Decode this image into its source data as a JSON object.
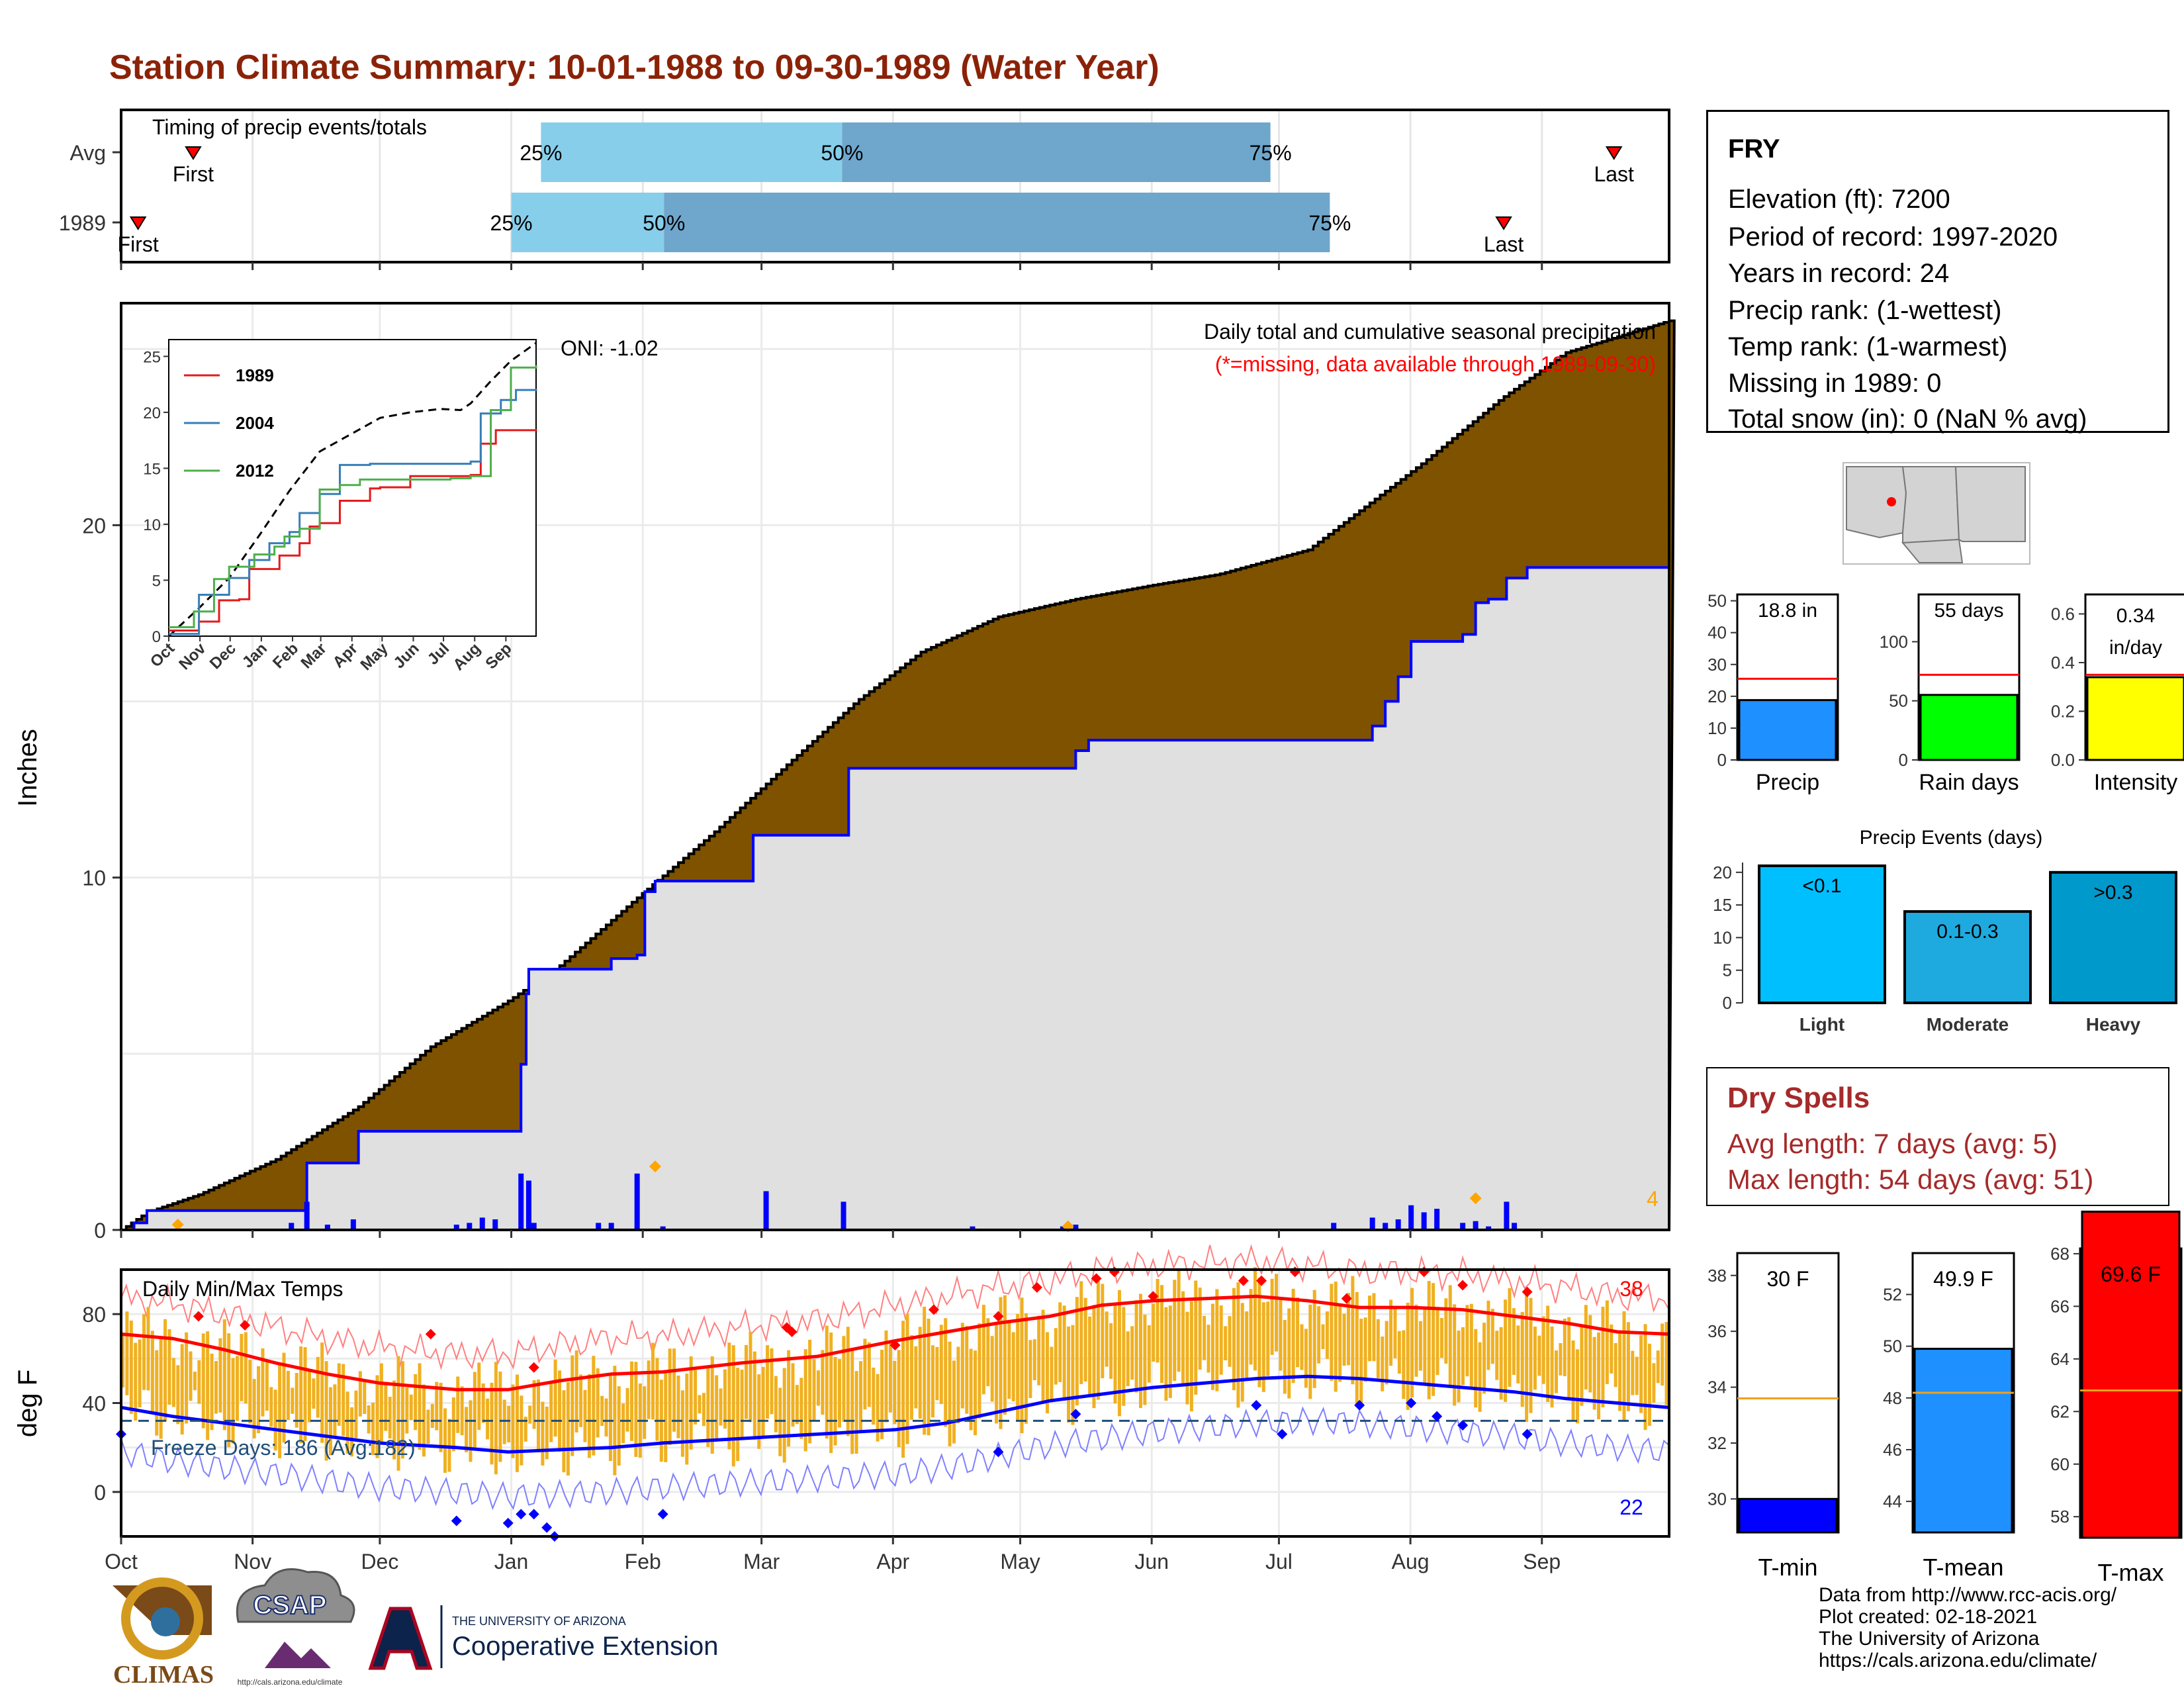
{
  "title": "Station Climate Summary: 10-01-1988 to 09-30-1989 (Water Year)",
  "colors": {
    "title": "#8b2207",
    "cum_precip_fill": "#7f5200",
    "avg_precip_fill": "#e0e0e0",
    "avg_precip_line": "#0000ff",
    "daily_bar": "#0000ff",
    "tmax_line": "#ff0000",
    "tmin_line": "#0000ff",
    "temp_bars": "#f0b020",
    "timing_light": "#87ceeb",
    "timing_dark": "#6fa6cc",
    "dry_spell_text": "#a52a2a"
  },
  "timing": {
    "label": "Timing of precip events/totals",
    "rows": [
      {
        "name": "Avg",
        "first_label": "First",
        "last_label": "Last",
        "p25_label": "25%",
        "p50_label": "50%",
        "p75_label": "75%",
        "first_day": 17,
        "last_day": 352,
        "p25_day": 99,
        "p50_day": 170,
        "p75_day": 271
      },
      {
        "name": "1989",
        "first_label": "First",
        "last_label": "Last",
        "p25_label": "25%",
        "p50_label": "50%",
        "p75_label": "75%",
        "first_day": 4,
        "last_day": 326,
        "p25_day": 92,
        "p50_day": 128,
        "p75_day": 285
      }
    ]
  },
  "precip_panel": {
    "ylabel": "Inches",
    "y_ticks": [
      0,
      10,
      20
    ],
    "ylim": [
      0,
      26.3
    ],
    "oni": "ONI: -1.02",
    "legend_title": "Daily total and cumulative seasonal precipitation",
    "missing_note": "(*=missing, data available through 1989-09-30)",
    "corner_count": "4",
    "cum_1989": [
      [
        0,
        0
      ],
      [
        10,
        0.5
      ],
      [
        30,
        1.0
      ],
      [
        60,
        2.0
      ],
      [
        92,
        3.5
      ],
      [
        120,
        5.2
      ],
      [
        150,
        6.5
      ],
      [
        170,
        7.5
      ],
      [
        198,
        9.3
      ],
      [
        230,
        11.3
      ],
      [
        258,
        13.2
      ],
      [
        285,
        15.0
      ],
      [
        310,
        16.4
      ],
      [
        340,
        17.4
      ],
      [
        370,
        17.9
      ],
      [
        400,
        18.3
      ],
      [
        425,
        18.6
      ],
      [
        460,
        19.3
      ],
      [
        505,
        21.8
      ],
      [
        535,
        23.6
      ],
      [
        560,
        24.9
      ],
      [
        600,
        25.8
      ]
    ],
    "avg_cum": [
      [
        0,
        0
      ],
      [
        5,
        0.2
      ],
      [
        10,
        0.55
      ],
      [
        70,
        0.55
      ],
      [
        72,
        1.9
      ],
      [
        90,
        1.9
      ],
      [
        92,
        2.8
      ],
      [
        150,
        2.8
      ],
      [
        155,
        4.7
      ],
      [
        157,
        6.7
      ],
      [
        158,
        7.4
      ],
      [
        185,
        7.4
      ],
      [
        190,
        7.7
      ],
      [
        200,
        7.8
      ],
      [
        203,
        9.6
      ],
      [
        207,
        9.9
      ],
      [
        244,
        9.9
      ],
      [
        245,
        11.2
      ],
      [
        280,
        11.2
      ],
      [
        282,
        13.1
      ],
      [
        360,
        13.1
      ],
      [
        370,
        13.6
      ],
      [
        375,
        13.9
      ],
      [
        470,
        13.9
      ],
      [
        485,
        14.3
      ],
      [
        490,
        15.0
      ],
      [
        495,
        15.7
      ],
      [
        500,
        16.7
      ],
      [
        520,
        16.9
      ],
      [
        525,
        17.8
      ],
      [
        530,
        17.9
      ],
      [
        537,
        18.5
      ],
      [
        545,
        18.8
      ],
      [
        600,
        18.8
      ]
    ],
    "daily_bars": [
      [
        66,
        0.2
      ],
      [
        72,
        0.8
      ],
      [
        80,
        0.15
      ],
      [
        90,
        0.3
      ],
      [
        130,
        0.15
      ],
      [
        135,
        0.2
      ],
      [
        140,
        0.35
      ],
      [
        145,
        0.3
      ],
      [
        155,
        1.6
      ],
      [
        158,
        1.4
      ],
      [
        160,
        0.2
      ],
      [
        185,
        0.2
      ],
      [
        190,
        0.2
      ],
      [
        200,
        1.6
      ],
      [
        210,
        0.1
      ],
      [
        250,
        1.1
      ],
      [
        280,
        0.8
      ],
      [
        330,
        0.1
      ],
      [
        365,
        0.1
      ],
      [
        370,
        0.15
      ],
      [
        470,
        0.2
      ],
      [
        485,
        0.35
      ],
      [
        490,
        0.2
      ],
      [
        495,
        0.3
      ],
      [
        500,
        0.7
      ],
      [
        505,
        0.5
      ],
      [
        510,
        0.6
      ],
      [
        520,
        0.2
      ],
      [
        525,
        0.25
      ],
      [
        530,
        0.1
      ],
      [
        537,
        0.8
      ],
      [
        540,
        0.2
      ]
    ],
    "orange_markers": [
      [
        22,
        0.15
      ],
      [
        207,
        1.8
      ],
      [
        367,
        0.1
      ],
      [
        525,
        0.9
      ]
    ]
  },
  "inset": {
    "y_ticks": [
      0,
      5,
      10,
      15,
      20,
      25
    ],
    "months": [
      "Oct",
      "Nov",
      "Dec",
      "Jan",
      "Feb",
      "Mar",
      "Apr",
      "May",
      "Jun",
      "Jul",
      "Aug",
      "Sep"
    ],
    "series": [
      {
        "name": "1989",
        "color": "#e41a1c",
        "values": [
          [
            0,
            0.5
          ],
          [
            30,
            1.3
          ],
          [
            50,
            3.2
          ],
          [
            70,
            3.3
          ],
          [
            80,
            6.0
          ],
          [
            110,
            7.2
          ],
          [
            130,
            8.3
          ],
          [
            140,
            9.8
          ],
          [
            150,
            10.1
          ],
          [
            170,
            12.1
          ],
          [
            200,
            13.2
          ],
          [
            210,
            13.3
          ],
          [
            240,
            14.3
          ],
          [
            260,
            14.3
          ],
          [
            300,
            14.4
          ],
          [
            310,
            17.2
          ],
          [
            325,
            18.4
          ],
          [
            365,
            18.5
          ]
        ]
      },
      {
        "name": "2004",
        "color": "#377eb8",
        "values": [
          [
            0,
            0.2
          ],
          [
            30,
            3.7
          ],
          [
            60,
            5.2
          ],
          [
            80,
            6.8
          ],
          [
            100,
            8.3
          ],
          [
            120,
            9.3
          ],
          [
            130,
            11.0
          ],
          [
            150,
            12.7
          ],
          [
            170,
            15.3
          ],
          [
            200,
            15.4
          ],
          [
            280,
            15.4
          ],
          [
            300,
            15.6
          ],
          [
            310,
            19.9
          ],
          [
            330,
            21.1
          ],
          [
            345,
            22.0
          ],
          [
            365,
            22.1
          ]
        ]
      },
      {
        "name": "2012",
        "color": "#4daf4a",
        "values": [
          [
            0,
            0.8
          ],
          [
            25,
            2.2
          ],
          [
            45,
            5.1
          ],
          [
            60,
            6.2
          ],
          [
            85,
            7.3
          ],
          [
            105,
            8.0
          ],
          [
            115,
            8.9
          ],
          [
            130,
            9.6
          ],
          [
            150,
            13.1
          ],
          [
            170,
            13.5
          ],
          [
            190,
            14.0
          ],
          [
            220,
            14.0
          ],
          [
            280,
            14.1
          ],
          [
            300,
            14.3
          ],
          [
            320,
            20.2
          ],
          [
            340,
            24.0
          ],
          [
            365,
            24.2
          ]
        ]
      }
    ],
    "avg_dashed": [
      [
        0,
        0
      ],
      [
        30,
        2.5
      ],
      [
        60,
        5.2
      ],
      [
        90,
        9
      ],
      [
        120,
        13
      ],
      [
        150,
        16.5
      ],
      [
        180,
        18
      ],
      [
        210,
        19.5
      ],
      [
        240,
        20
      ],
      [
        270,
        20.3
      ],
      [
        290,
        20.2
      ],
      [
        300,
        20.8
      ],
      [
        320,
        22.8
      ],
      [
        340,
        24.6
      ],
      [
        365,
        26.2
      ]
    ]
  },
  "temp_panel": {
    "ylabel": "deg F",
    "label": "Daily Min/Max Temps",
    "y_ticks": [
      0,
      40,
      80
    ],
    "ylim": [
      -20,
      100
    ],
    "count_hot": "38",
    "count_cold": "22",
    "freeze_days": "Freeze Days: 186 (Avg:182)",
    "freeze_line": 32,
    "avg_tmax": [
      [
        0,
        71
      ],
      [
        20,
        69
      ],
      [
        40,
        64
      ],
      [
        60,
        58
      ],
      [
        80,
        53
      ],
      [
        100,
        49
      ],
      [
        130,
        46
      ],
      [
        150,
        46
      ],
      [
        170,
        50
      ],
      [
        190,
        53
      ],
      [
        210,
        54
      ],
      [
        240,
        58
      ],
      [
        270,
        61
      ],
      [
        300,
        68
      ],
      [
        320,
        72
      ],
      [
        340,
        76
      ],
      [
        360,
        79
      ],
      [
        380,
        84
      ],
      [
        400,
        86
      ],
      [
        420,
        87
      ],
      [
        440,
        88
      ],
      [
        460,
        86
      ],
      [
        480,
        83
      ],
      [
        500,
        83
      ],
      [
        520,
        82
      ],
      [
        540,
        79
      ],
      [
        560,
        76
      ],
      [
        580,
        72
      ],
      [
        600,
        71
      ]
    ],
    "avg_tmin": [
      [
        0,
        38
      ],
      [
        20,
        34
      ],
      [
        40,
        31
      ],
      [
        60,
        28
      ],
      [
        80,
        25
      ],
      [
        100,
        22
      ],
      [
        130,
        20
      ],
      [
        150,
        18
      ],
      [
        170,
        19
      ],
      [
        190,
        20
      ],
      [
        210,
        22
      ],
      [
        240,
        24
      ],
      [
        270,
        26
      ],
      [
        300,
        28
      ],
      [
        320,
        31
      ],
      [
        340,
        36
      ],
      [
        360,
        41
      ],
      [
        380,
        44
      ],
      [
        400,
        47
      ],
      [
        420,
        49
      ],
      [
        440,
        51
      ],
      [
        460,
        52
      ],
      [
        480,
        51
      ],
      [
        500,
        49
      ],
      [
        520,
        47
      ],
      [
        540,
        45
      ],
      [
        560,
        42
      ],
      [
        580,
        40
      ],
      [
        600,
        38
      ]
    ],
    "red_markers": [
      [
        30,
        79
      ],
      [
        48,
        75
      ],
      [
        120,
        71
      ],
      [
        160,
        56
      ],
      [
        258,
        74
      ],
      [
        260,
        72
      ],
      [
        300,
        66
      ],
      [
        315,
        82
      ],
      [
        340,
        79
      ],
      [
        355,
        92
      ],
      [
        378,
        96
      ],
      [
        385,
        99
      ],
      [
        400,
        88
      ],
      [
        435,
        95
      ],
      [
        442,
        95
      ],
      [
        455,
        99
      ],
      [
        475,
        87
      ],
      [
        505,
        99
      ],
      [
        520,
        93
      ],
      [
        545,
        90
      ]
    ],
    "blue_markers": [
      [
        0,
        26
      ],
      [
        130,
        -13
      ],
      [
        150,
        -14
      ],
      [
        155,
        -10
      ],
      [
        160,
        -10
      ],
      [
        165,
        -16
      ],
      [
        168,
        -20
      ],
      [
        210,
        -10
      ],
      [
        340,
        18
      ],
      [
        370,
        35
      ],
      [
        440,
        39
      ],
      [
        450,
        26
      ],
      [
        480,
        39
      ],
      [
        500,
        40
      ],
      [
        510,
        34
      ],
      [
        520,
        30
      ],
      [
        545,
        26
      ]
    ]
  },
  "x_axis": {
    "months": [
      "Oct",
      "Nov",
      "Dec",
      "Jan",
      "Feb",
      "Mar",
      "Apr",
      "May",
      "Jun",
      "Jul",
      "Aug",
      "Sep"
    ]
  },
  "station": {
    "name": "FRY",
    "lines": [
      "Elevation (ft): 7200",
      "Period of record: 1997-2020",
      "Years in record: 24",
      "Precip rank:  (1-wettest)",
      "Temp rank:  (1-warmest)",
      "Missing in 1989: 0",
      "Total snow (in): 0 (NaN % avg)"
    ]
  },
  "mini_bars": [
    {
      "label": "Precip",
      "value_label": "18.8 in",
      "value": 18.8,
      "avg": 25.5,
      "ylim": [
        0,
        52
      ],
      "ticks": [
        0,
        10,
        20,
        30,
        40,
        50
      ],
      "color": "#1e90ff"
    },
    {
      "label": "Rain days",
      "value_label": "55 days",
      "value": 55,
      "avg": 72,
      "ylim": [
        0,
        140
      ],
      "ticks": [
        0,
        50,
        100
      ],
      "color": "#00ff00"
    },
    {
      "label": "Intensity",
      "value_label": "0.34 in/day",
      "value_line1": "0.34",
      "value_line2": "in/day",
      "value": 0.34,
      "avg": 0.35,
      "ylim": [
        0,
        0.68
      ],
      "ticks": [
        "0.0",
        "0.2",
        "0.4",
        "0.6"
      ],
      "color": "#ffff00"
    }
  ],
  "precip_events": {
    "title": "Precip Events (days)",
    "ticks": [
      0,
      5,
      10,
      15,
      20
    ],
    "ylim": [
      0,
      21.5
    ],
    "categories": [
      "Light",
      "Moderate",
      "Heavy"
    ],
    "bar_labels": [
      "<0.1",
      "0.1-0.3",
      ">0.3"
    ],
    "values": [
      21,
      14,
      20
    ],
    "colors": [
      "#00bfff",
      "#1eaadf",
      "#0099cc"
    ]
  },
  "dry_spells": {
    "title": "Dry Spells",
    "avg_length": "Avg length: 7 days (avg: 5)",
    "max_length": "Max length: 54 days (avg: 51)"
  },
  "temp_bars": [
    {
      "label": "T-min",
      "value_label": "30 F",
      "value": 30,
      "avg": 33.6,
      "ylim": [
        28.8,
        38.8
      ],
      "ticks": [
        30,
        32,
        34,
        36,
        38
      ],
      "color": "#0000ff"
    },
    {
      "label": "T-mean",
      "value_label": "49.9 F",
      "value": 49.9,
      "avg": 48.2,
      "ylim": [
        42.8,
        53.6
      ],
      "ticks": [
        44,
        46,
        48,
        50,
        52
      ],
      "color": "#1e90ff"
    },
    {
      "label": "T-max",
      "value_label": "69.6 F",
      "value": 69.6,
      "avg": 62.8,
      "ylim": [
        57.2,
        68.2
      ],
      "ticks": [
        58,
        60,
        62,
        64,
        66,
        68
      ],
      "color": "#ff0000"
    }
  ],
  "credits": [
    "Data from http://www.rcc-acis.org/",
    "Plot created: 02-18-2021",
    "The University of Arizona",
    "https://cals.arizona.edu/climate/"
  ],
  "logos": {
    "climas": "CLIMAS",
    "csap": "CSAP",
    "csap_url": "http://cals.arizona.edu/climate",
    "ua_top": "THE UNIVERSITY OF ARIZONA",
    "ua_bottom": "Cooperative Extension"
  }
}
